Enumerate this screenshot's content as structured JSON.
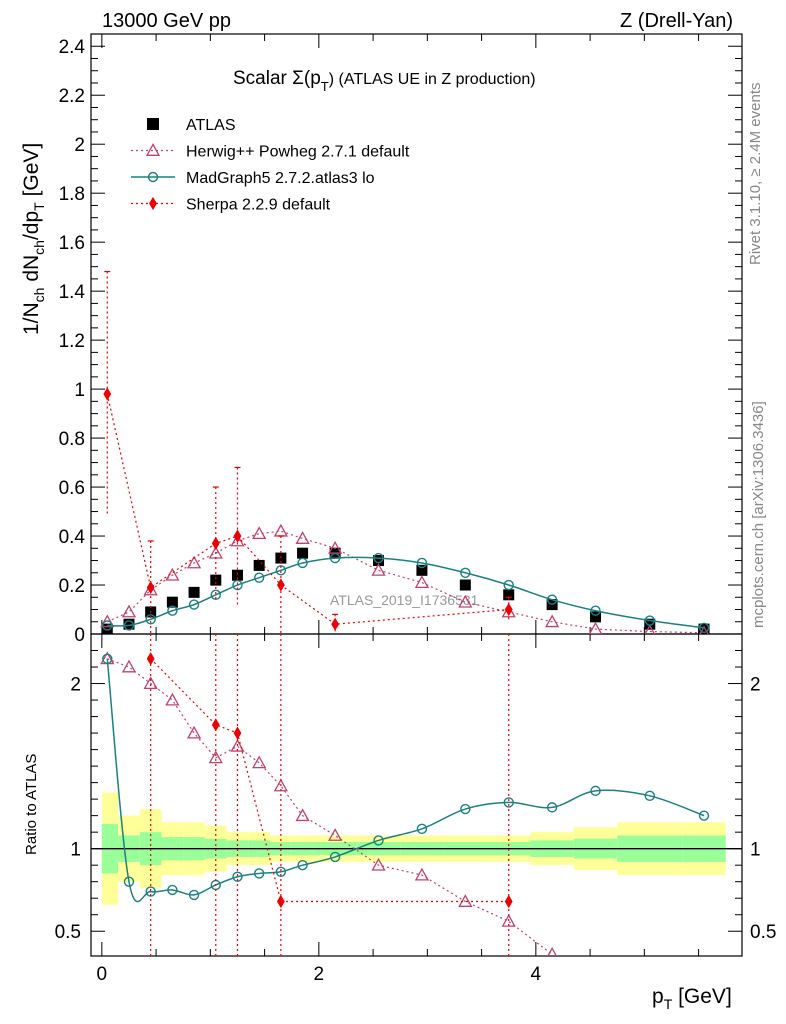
{
  "header": {
    "left": "13000 GeV pp",
    "right": "Z (Drell-Yan)"
  },
  "side_labels": {
    "top": "Rivet 3.1.10, ≥ 2.4M events",
    "bottom": "mcplots.cern.ch [arXiv:1306.3436]"
  },
  "chart_data": [
    {
      "type": "scatter",
      "title_main": "Scalar Σ(p",
      "title_sub": "T",
      "title_tail": ") (ATLAS UE in Z production)",
      "ylabel": "1/N_ch dN_ch/dp_T [GeV]",
      "ylim": [
        0,
        2.45
      ],
      "yticks": [
        "0",
        "0.2",
        "0.4",
        "0.6",
        "0.8",
        "1",
        "1.2",
        "1.4",
        "1.6",
        "1.8",
        "2",
        "2.2",
        "2.4"
      ],
      "watermark": "ATLAS_2019_I1736531",
      "legend_position": "top-left",
      "series": [
        {
          "name": "ATLAS",
          "color": "#000000",
          "marker": "square",
          "x": [
            0.05,
            0.25,
            0.45,
            0.65,
            0.85,
            1.05,
            1.25,
            1.45,
            1.65,
            1.85,
            2.15,
            2.55,
            2.95,
            3.35,
            3.75,
            4.15,
            4.55,
            5.05,
            5.55
          ],
          "y": [
            0.02,
            0.04,
            0.09,
            0.13,
            0.17,
            0.22,
            0.24,
            0.28,
            0.31,
            0.33,
            0.33,
            0.3,
            0.26,
            0.2,
            0.16,
            0.12,
            0.07,
            0.04,
            0.02
          ]
        },
        {
          "name": "Herwig++ Powheg 2.7.1 default",
          "color": "#c0406e",
          "marker": "triangle-open",
          "line": "dotted",
          "x": [
            0.05,
            0.25,
            0.45,
            0.65,
            0.85,
            1.05,
            1.25,
            1.45,
            1.65,
            1.85,
            2.15,
            2.55,
            2.95,
            3.35,
            3.75,
            4.15,
            4.55,
            5.05,
            5.55
          ],
          "y": [
            0.05,
            0.09,
            0.18,
            0.24,
            0.29,
            0.33,
            0.38,
            0.41,
            0.42,
            0.39,
            0.35,
            0.26,
            0.21,
            0.13,
            0.09,
            0.05,
            0.02,
            0.01,
            0.005
          ]
        },
        {
          "name": "MadGraph5 2.7.2.atlas3 lo",
          "color": "#1a8080",
          "marker": "circle-open",
          "line": "solid",
          "x": [
            0.05,
            0.25,
            0.45,
            0.65,
            0.85,
            1.05,
            1.25,
            1.45,
            1.65,
            1.85,
            2.15,
            2.55,
            2.95,
            3.35,
            3.75,
            4.15,
            4.55,
            5.05,
            5.55
          ],
          "y": [
            0.035,
            0.035,
            0.06,
            0.095,
            0.12,
            0.16,
            0.2,
            0.23,
            0.26,
            0.29,
            0.31,
            0.31,
            0.29,
            0.25,
            0.2,
            0.14,
            0.095,
            0.055,
            0.025
          ]
        },
        {
          "name": "Sherpa 2.2.9 default",
          "color": "#ee0000",
          "marker": "diamond",
          "line": "dotted",
          "x": [
            0.05,
            0.45,
            1.05,
            1.25,
            1.65,
            2.15,
            3.75
          ],
          "y": [
            0.98,
            0.19,
            0.37,
            0.4,
            0.2,
            0.04,
            0.1
          ],
          "err": [
            0.5,
            0.19,
            0.23,
            0.28,
            0.2,
            0.04,
            0.05
          ]
        }
      ]
    },
    {
      "type": "line",
      "xlabel": "p_T [GeV]",
      "ylabel": "Ratio to ATLAS",
      "ylim": [
        0.35,
        2.3
      ],
      "xlim": [
        -0.1,
        5.9
      ],
      "xticks": [
        "0",
        "2",
        "4"
      ],
      "yticks": [
        "0.5",
        "1",
        "2"
      ],
      "band_edges": [
        0,
        0.15,
        0.35,
        0.55,
        0.75,
        0.95,
        1.15,
        1.35,
        1.55,
        1.75,
        1.95,
        2.35,
        2.75,
        3.15,
        3.55,
        3.95,
        4.35,
        4.75,
        5.35,
        5.75
      ],
      "band_inner": [
        0.15,
        0.08,
        0.1,
        0.07,
        0.07,
        0.06,
        0.05,
        0.05,
        0.04,
        0.04,
        0.04,
        0.04,
        0.04,
        0.04,
        0.04,
        0.05,
        0.06,
        0.08,
        0.08
      ],
      "band_outer": [
        0.34,
        0.2,
        0.24,
        0.16,
        0.16,
        0.14,
        0.1,
        0.1,
        0.08,
        0.08,
        0.08,
        0.08,
        0.08,
        0.08,
        0.08,
        0.1,
        0.13,
        0.16,
        0.16
      ],
      "series": [
        {
          "name": "Herwig++ Powheg 2.7.1 default",
          "color": "#c0406e",
          "x": [
            0.05,
            0.25,
            0.45,
            0.65,
            0.85,
            1.05,
            1.25,
            1.45,
            1.65,
            1.85,
            2.15,
            2.55,
            2.95,
            3.35,
            3.75,
            4.15
          ],
          "y": [
            2.15,
            2.1,
            2.0,
            1.9,
            1.7,
            1.55,
            1.62,
            1.52,
            1.38,
            1.2,
            1.08,
            0.9,
            0.84,
            0.68,
            0.56,
            0.36
          ]
        },
        {
          "name": "MadGraph5 2.7.2.atlas3 lo",
          "color": "#1a8080",
          "x": [
            0.05,
            0.25,
            0.45,
            0.65,
            0.85,
            1.05,
            1.25,
            1.45,
            1.65,
            1.85,
            2.15,
            2.55,
            2.95,
            3.35,
            3.75,
            4.15,
            4.55,
            5.05,
            5.55
          ],
          "y": [
            2.15,
            0.8,
            0.74,
            0.75,
            0.72,
            0.78,
            0.83,
            0.85,
            0.86,
            0.9,
            0.95,
            1.05,
            1.12,
            1.24,
            1.28,
            1.25,
            1.35,
            1.32,
            1.2
          ]
        },
        {
          "name": "Sherpa 2.2.9 default",
          "color": "#ee0000",
          "x": [
            0.45,
            1.05,
            1.25,
            1.65,
            3.75
          ],
          "y": [
            2.15,
            1.75,
            1.7,
            0.68,
            0.68
          ]
        }
      ]
    }
  ]
}
